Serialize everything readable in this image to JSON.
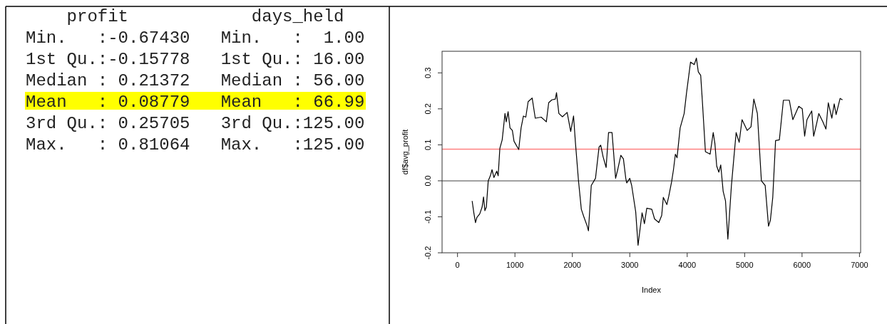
{
  "chart_data": [
    {
      "type": "other",
      "annotations": [
        "    profit            days_held",
        "Min.   :-0.67430   Min.   :  1.00",
        "1st Qu.:-0.15778   1st Qu.: 16.00",
        "Median : 0.21372   Median : 56.00",
        "Mean   : 0.08779   Mean   : 66.99",
        "3rd Qu.: 0.25705   3rd Qu.:125.00",
        "Max.   : 0.81064   Max.   :125.00"
      ]
    },
    {
      "type": "line",
      "xlabel": "Index",
      "ylabel": "df$avg_profit",
      "xlim": [
        -269,
        7020
      ],
      "ylim": [
        -0.2,
        0.36
      ],
      "xticks": [
        0,
        1000,
        2000,
        3000,
        4000,
        5000,
        6000,
        7000
      ],
      "yticks": [
        -0.2,
        -0.1,
        {
          "value": 0,
          "label": "0.0"
        },
        0.1,
        0.2,
        0.3
      ],
      "grid": false,
      "ref_lines": [
        {
          "axis": "y",
          "value": 0,
          "color": "#808080"
        },
        {
          "axis": "y",
          "value": 0.088,
          "color": "#ff8080"
        }
      ],
      "series": [
        {
          "color": "#000000",
          "x": [
            255,
            284,
            313,
            337,
            387,
            428,
            453,
            477,
            502,
            535,
            572,
            601,
            634,
            683,
            708,
            737,
            778,
            827,
            848,
            881,
            914,
            955,
            984,
            1066,
            1107,
            1148,
            1189,
            1230,
            1300,
            1354,
            1457,
            1547,
            1588,
            1642,
            1704,
            1724,
            1765,
            1827,
            1909,
            1971,
            2021,
            2053,
            2107,
            2156,
            2198,
            2259,
            2280,
            2329,
            2403,
            2465,
            2494,
            2535,
            2588,
            2630,
            2691,
            2753,
            2794,
            2844,
            2889,
            2930,
            2947,
            3000,
            3033,
            3103,
            3144,
            3165,
            3214,
            3255,
            3296,
            3383,
            3432,
            3506,
            3556,
            3584,
            3646,
            3679,
            3728,
            3761,
            3794,
            3823,
            3877,
            3947,
            3988,
            4058,
            4123,
            4160,
            4193,
            4235,
            4263,
            4317,
            4399,
            4453,
            4482,
            4514,
            4551,
            4584,
            4626,
            4667,
            4708,
            4770,
            4811,
            4852,
            4905,
            4955,
            5045,
            5111,
            5160,
            5222,
            5292,
            5358,
            5416,
            5449,
            5490,
            5539,
            5605,
            5675,
            5778,
            5840,
            5942,
            6004,
            6045,
            6086,
            6169,
            6202,
            6251,
            6292,
            6362,
            6416,
            6457,
            6519,
            6560,
            6593,
            6663,
            6704
          ],
          "values": [
            -0.056,
            -0.089,
            -0.116,
            -0.102,
            -0.092,
            -0.073,
            -0.045,
            -0.083,
            -0.073,
            0.0,
            0.014,
            0.031,
            0.009,
            0.027,
            0.014,
            0.09,
            0.114,
            0.187,
            0.164,
            0.192,
            0.147,
            0.14,
            0.11,
            0.087,
            0.147,
            0.18,
            0.177,
            0.22,
            0.23,
            0.174,
            0.177,
            0.164,
            0.217,
            0.225,
            0.227,
            0.245,
            0.187,
            0.178,
            0.19,
            0.137,
            0.18,
            0.107,
            0.0,
            -0.079,
            -0.099,
            -0.126,
            -0.139,
            -0.013,
            0.007,
            0.094,
            0.099,
            0.067,
            0.037,
            0.134,
            0.134,
            0.007,
            0.034,
            0.071,
            0.061,
            0.007,
            -0.006,
            0.007,
            -0.013,
            -0.086,
            -0.179,
            -0.152,
            -0.089,
            -0.119,
            -0.076,
            -0.079,
            -0.106,
            -0.116,
            -0.096,
            -0.046,
            -0.066,
            -0.043,
            -0.003,
            0.031,
            0.074,
            0.064,
            0.147,
            0.187,
            0.244,
            0.33,
            0.323,
            0.341,
            0.303,
            0.293,
            0.224,
            0.081,
            0.074,
            0.134,
            0.104,
            0.041,
            0.024,
            0.044,
            -0.029,
            -0.056,
            -0.162,
            -0.013,
            0.061,
            0.134,
            0.107,
            0.17,
            0.14,
            0.15,
            0.227,
            0.187,
            0.0,
            -0.013,
            -0.126,
            -0.109,
            -0.046,
            0.112,
            0.114,
            0.224,
            0.224,
            0.17,
            0.207,
            0.2,
            0.124,
            0.17,
            0.194,
            0.124,
            0.157,
            0.187,
            0.164,
            0.144,
            0.217,
            0.174,
            0.214,
            0.184,
            0.229,
            0.225
          ]
        }
      ]
    }
  ]
}
